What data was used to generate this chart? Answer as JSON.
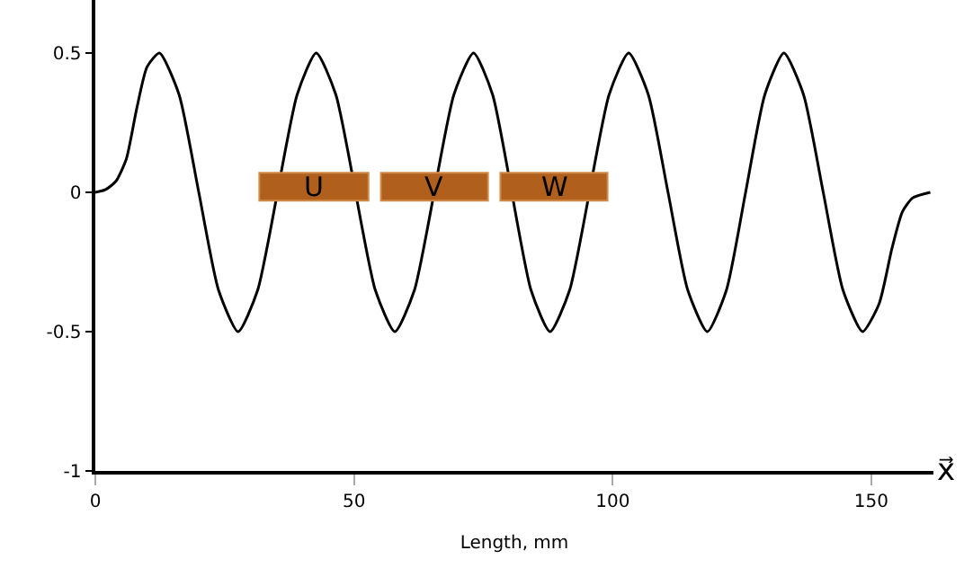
{
  "chart_data": {
    "type": "line",
    "xlabel": "Length, mm",
    "annotations": [
      "U",
      "V",
      "W",
      "x⃗"
    ],
    "x": [
      0,
      2,
      4,
      6,
      8,
      10,
      12.4,
      16.2,
      20,
      23.8,
      27.6,
      31.4,
      39,
      42.7,
      46.5,
      54.1,
      57.9,
      61.7,
      69.3,
      73.1,
      76.8,
      84.2,
      87.9,
      91.7,
      99.3,
      103.1,
      106.9,
      110.7,
      114.5,
      118.3,
      122,
      125.7,
      129.4,
      133.1,
      136.9,
      140.7,
      144.5,
      148.3,
      151.5,
      154,
      156,
      158,
      161.4
    ],
    "series": [
      {
        "color": "#000000",
        "values": [
          0,
          0.01,
          0.04,
          0.12,
          0.3,
          0.45,
          0.5,
          0.35,
          0,
          -0.35,
          -0.5,
          -0.35,
          0.35,
          0.5,
          0.35,
          -0.35,
          -0.5,
          -0.35,
          0.35,
          0.5,
          0.35,
          -0.35,
          -0.5,
          -0.35,
          0.35,
          0.5,
          0.35,
          0,
          -0.35,
          -0.5,
          -0.35,
          0,
          0.35,
          0.5,
          0.35,
          0,
          -0.35,
          -0.5,
          -0.4,
          -0.2,
          -0.07,
          -0.02,
          0
        ]
      }
    ],
    "xlim": [
      0,
      162
    ],
    "ylim": [
      -1,
      0.69
    ],
    "xticks": [
      0,
      50,
      100,
      150
    ],
    "yticks": [
      -1,
      -0.5,
      0,
      0.5
    ],
    "grid": false,
    "marker": "none",
    "line_style": "solid"
  }
}
